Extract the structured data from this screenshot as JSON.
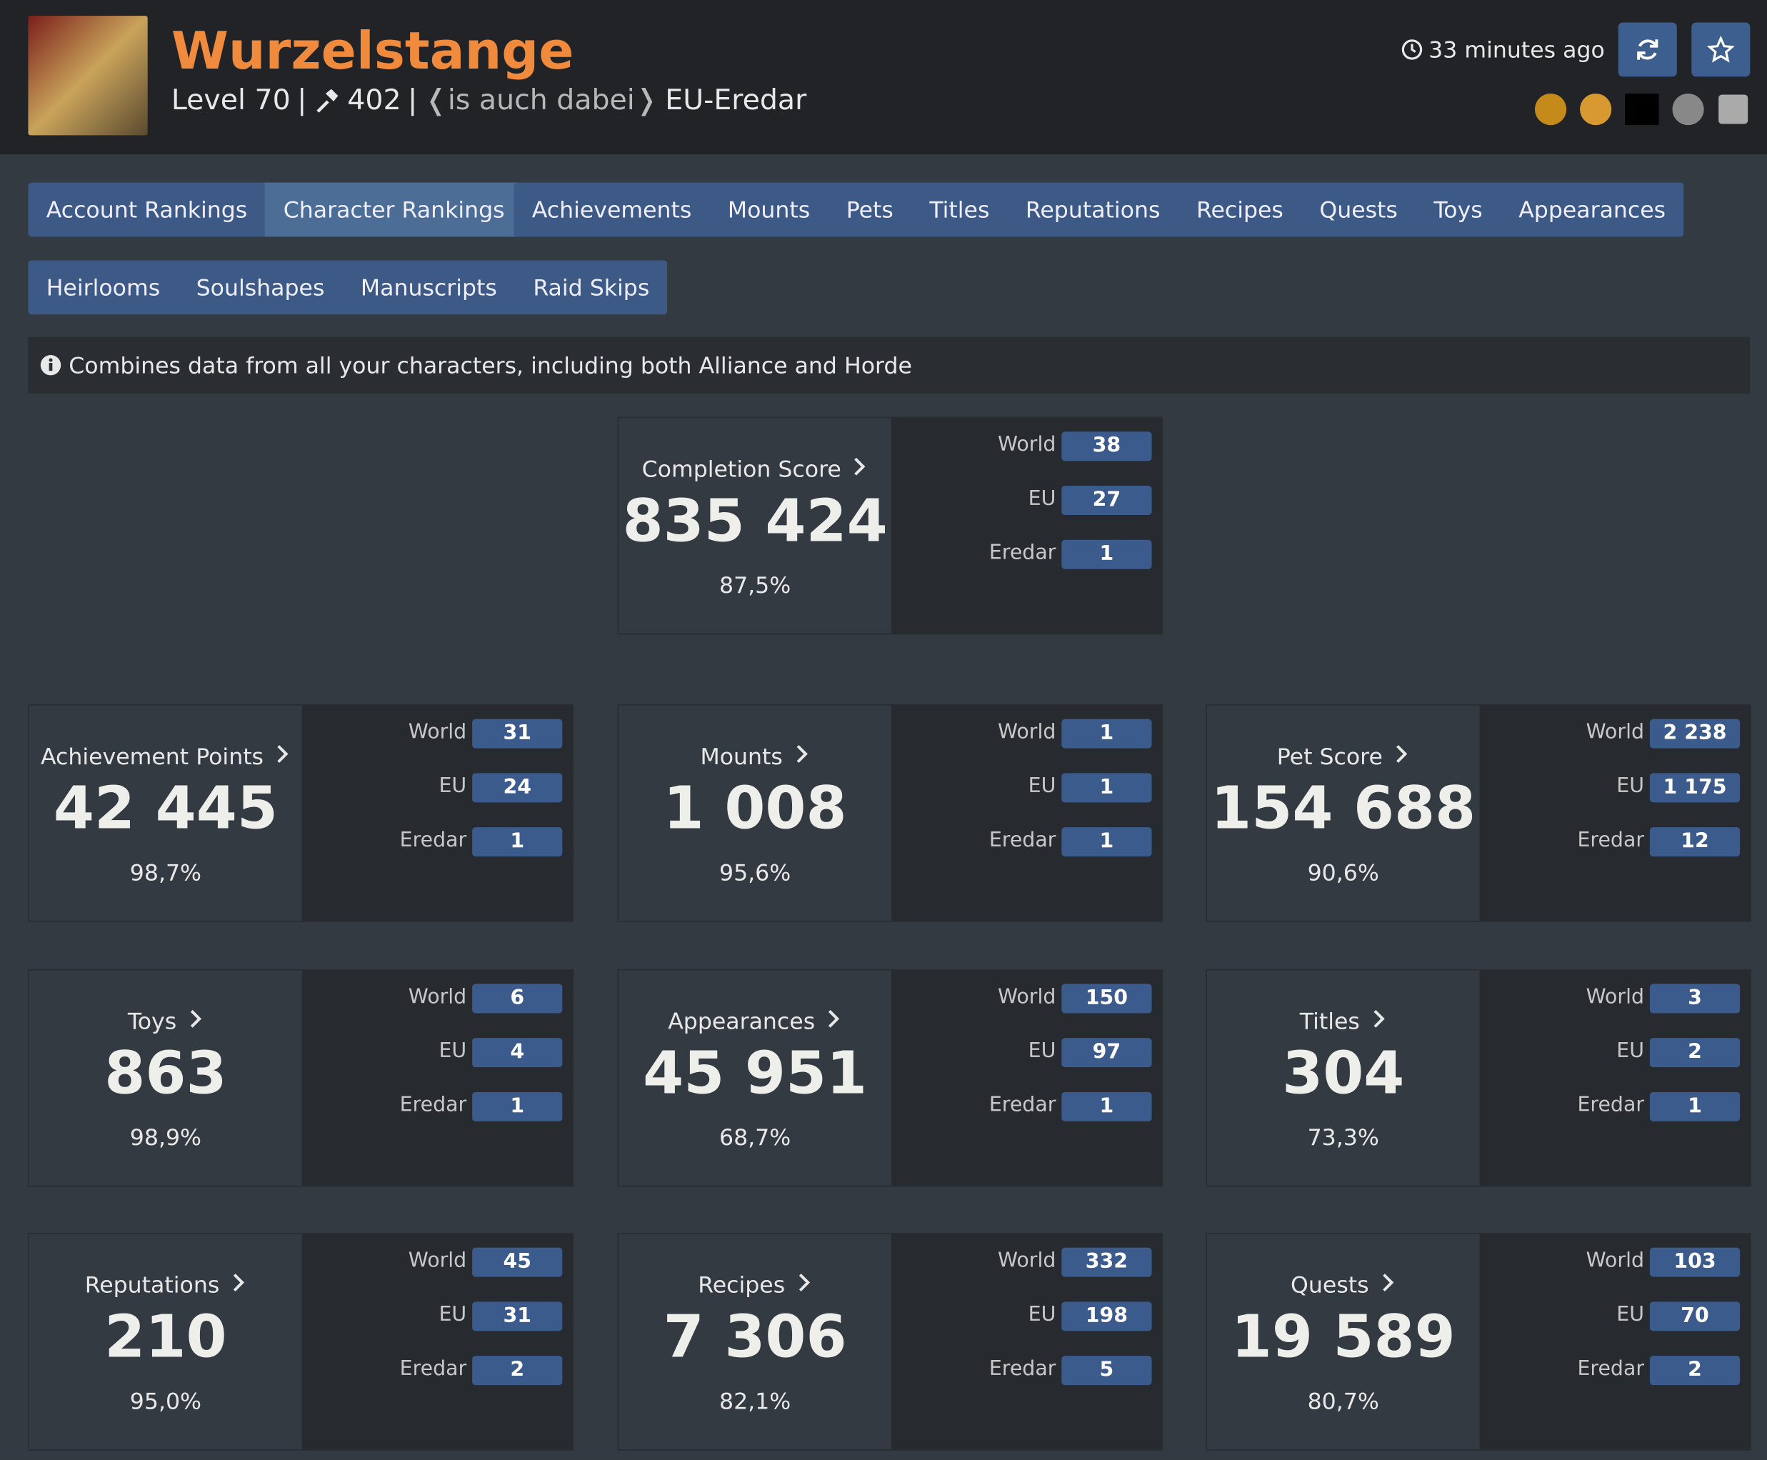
{
  "header": {
    "name": "Wurzelstange",
    "level": "Level 70",
    "separator": "|",
    "item_level": "402",
    "guild": "❬is auch dabei❭",
    "realm": "EU-Eredar",
    "updated": "33 minutes ago"
  },
  "tabs": [
    [
      "Account Rankings",
      "Character Rankings"
    ],
    [
      "Achievements",
      "Mounts",
      "Pets",
      "Titles",
      "Reputations",
      "Recipes",
      "Quests",
      "Toys",
      "Appearances"
    ],
    [
      "Heirlooms",
      "Soulshapes",
      "Manuscripts",
      "Raid Skips"
    ]
  ],
  "info": "Combines data from all your characters, including both Alliance and Horde",
  "cards": [
    {
      "title": "Completion Score",
      "value": "835 424",
      "percent": "87,5%",
      "ranks": [
        {
          "label": "World",
          "value": "38"
        },
        {
          "label": "EU",
          "value": "27"
        },
        {
          "label": "Eredar",
          "value": "1"
        }
      ]
    },
    {
      "title": "Achievement Points",
      "value": "42 445",
      "percent": "98,7%",
      "ranks": [
        {
          "label": "World",
          "value": "31"
        },
        {
          "label": "EU",
          "value": "24"
        },
        {
          "label": "Eredar",
          "value": "1"
        }
      ]
    },
    {
      "title": "Mounts",
      "value": "1 008",
      "percent": "95,6%",
      "ranks": [
        {
          "label": "World",
          "value": "1"
        },
        {
          "label": "EU",
          "value": "1"
        },
        {
          "label": "Eredar",
          "value": "1"
        }
      ]
    },
    {
      "title": "Pet Score",
      "value": "154 688",
      "percent": "90,6%",
      "ranks": [
        {
          "label": "World",
          "value": "2 238"
        },
        {
          "label": "EU",
          "value": "1 175"
        },
        {
          "label": "Eredar",
          "value": "12"
        }
      ]
    },
    {
      "title": "Toys",
      "value": "863",
      "percent": "98,9%",
      "ranks": [
        {
          "label": "World",
          "value": "6"
        },
        {
          "label": "EU",
          "value": "4"
        },
        {
          "label": "Eredar",
          "value": "1"
        }
      ]
    },
    {
      "title": "Appearances",
      "value": "45 951",
      "percent": "68,7%",
      "ranks": [
        {
          "label": "World",
          "value": "150"
        },
        {
          "label": "EU",
          "value": "97"
        },
        {
          "label": "Eredar",
          "value": "1"
        }
      ]
    },
    {
      "title": "Titles",
      "value": "304",
      "percent": "73,3%",
      "ranks": [
        {
          "label": "World",
          "value": "3"
        },
        {
          "label": "EU",
          "value": "2"
        },
        {
          "label": "Eredar",
          "value": "1"
        }
      ]
    },
    {
      "title": "Reputations",
      "value": "210",
      "percent": "95,0%",
      "ranks": [
        {
          "label": "World",
          "value": "45"
        },
        {
          "label": "EU",
          "value": "31"
        },
        {
          "label": "Eredar",
          "value": "2"
        }
      ]
    },
    {
      "title": "Recipes",
      "value": "7 306",
      "percent": "82,1%",
      "ranks": [
        {
          "label": "World",
          "value": "332"
        },
        {
          "label": "EU",
          "value": "198"
        },
        {
          "label": "Eredar",
          "value": "5"
        }
      ]
    },
    {
      "title": "Quests",
      "value": "19 589",
      "percent": "80,7%",
      "ranks": [
        {
          "label": "World",
          "value": "103"
        },
        {
          "label": "EU",
          "value": "70"
        },
        {
          "label": "Eredar",
          "value": "2"
        }
      ]
    }
  ]
}
